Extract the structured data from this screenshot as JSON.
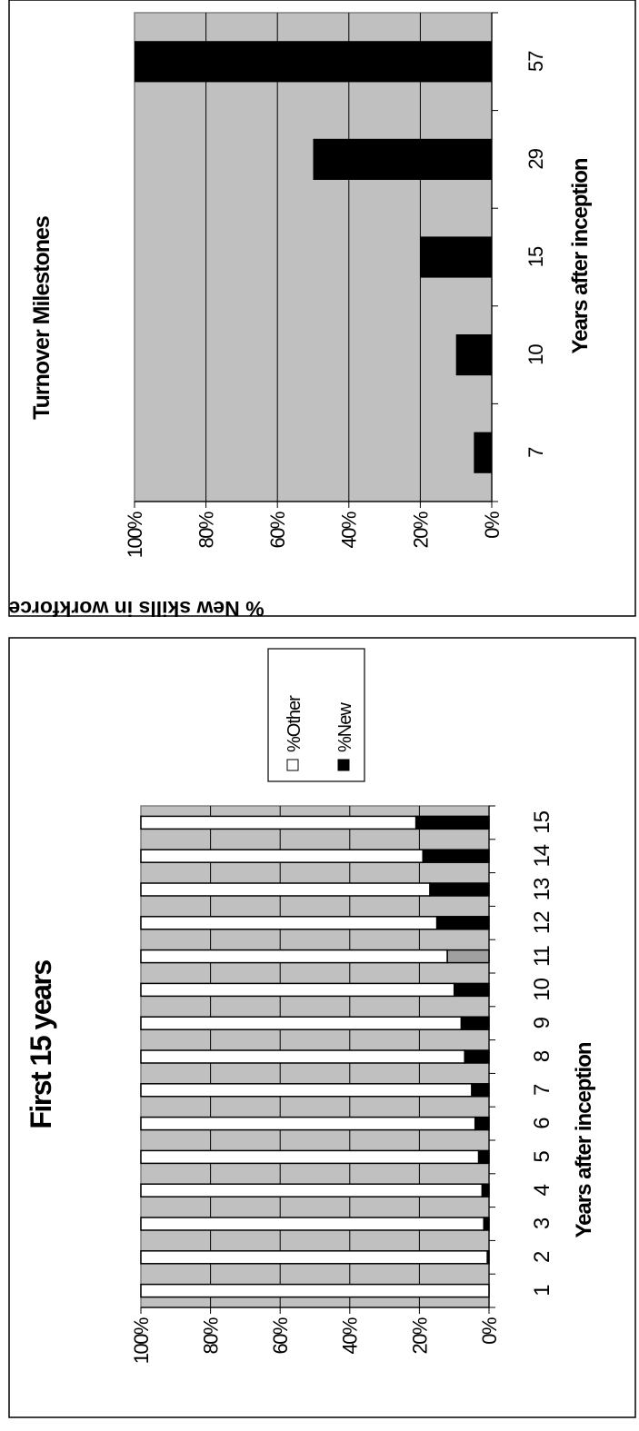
{
  "chart_data": [
    {
      "type": "bar",
      "title": "Turnover Milestones",
      "xlabel": "Years after inception",
      "ylabel": "% New skills in workforce",
      "categories": [
        "7",
        "10",
        "15",
        "29",
        "57"
      ],
      "series": [
        {
          "values": [
            5,
            10,
            20,
            50,
            100
          ]
        }
      ],
      "ylim": [
        0,
        100
      ],
      "yticks": [
        "0%",
        "20%",
        "40%",
        "60%",
        "80%",
        "100%"
      ],
      "grid": true,
      "colors": {
        "plot_bg": "#c0c0c0",
        "bar": "#000000"
      }
    },
    {
      "type": "bar",
      "stacked": true,
      "title": "First 15 years",
      "xlabel": "Years after inception",
      "categories": [
        "1",
        "2",
        "3",
        "4",
        "5",
        "6",
        "7",
        "8",
        "9",
        "10",
        "11",
        "12",
        "13",
        "14",
        "15"
      ],
      "series": [
        {
          "name": "%New",
          "values": [
            0,
            0.5,
            1.5,
            2,
            3,
            4,
            5,
            7,
            8,
            10,
            12,
            15,
            17,
            19,
            21
          ]
        },
        {
          "name": "%Other",
          "values": [
            100,
            99.5,
            98.5,
            98,
            97,
            96,
            95,
            93,
            92,
            90,
            88,
            85,
            83,
            81,
            79
          ]
        }
      ],
      "highlighted_new_color": {
        "category": "11",
        "color": "#a0a0a0"
      },
      "ylim": [
        0,
        100
      ],
      "yticks": [
        "0%",
        "20%",
        "40%",
        "60%",
        "80%",
        "100%"
      ],
      "grid": true,
      "legend_position": "top-right",
      "colors": {
        "plot_bg": "#c0c0c0",
        "new": "#000000",
        "other": "#ffffff"
      }
    }
  ]
}
